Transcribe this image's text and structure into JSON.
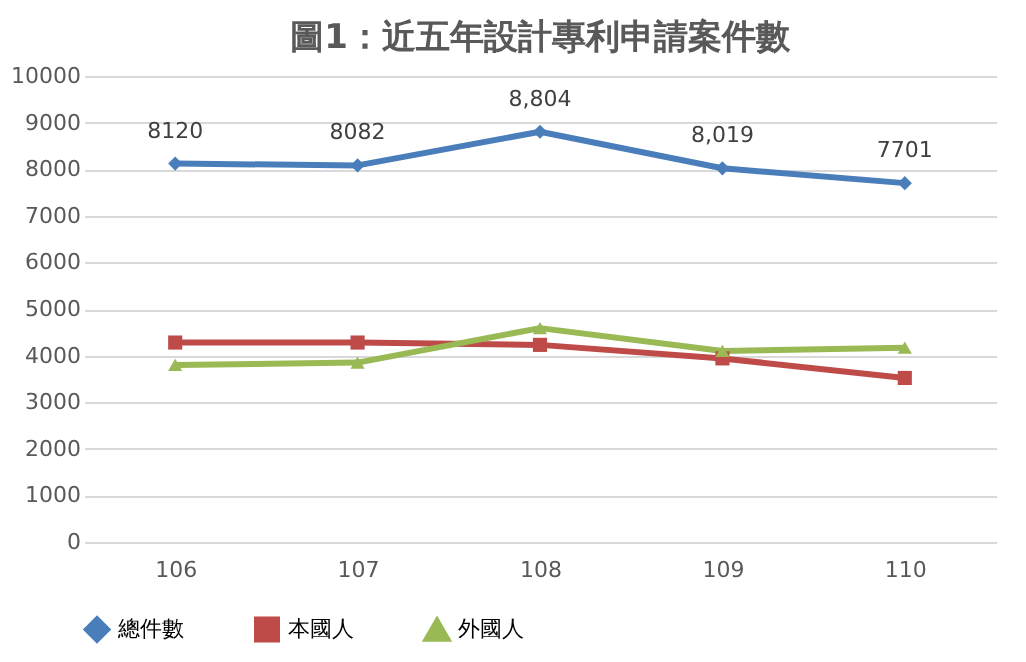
{
  "chart_data": {
    "type": "line",
    "title": "圖1：近五年設計專利申請案件數",
    "categories": [
      "106",
      "107",
      "108",
      "109",
      "110"
    ],
    "series": [
      {
        "name": "總件數",
        "color": "#4a7ebb",
        "marker": "diamond",
        "values": [
          8120,
          8082,
          8804,
          8019,
          7701
        ],
        "value_labels": [
          "8120",
          "8082",
          "8,804",
          "8,019",
          "7701"
        ]
      },
      {
        "name": "本國人",
        "color": "#be4b48",
        "marker": "square",
        "values": [
          4280,
          4280,
          4230,
          3940,
          3520
        ]
      },
      {
        "name": "外國人",
        "color": "#98b954",
        "marker": "triangle",
        "values": [
          3800,
          3850,
          4590,
          4100,
          4170
        ]
      }
    ],
    "ylim": [
      0,
      10000
    ],
    "yticks": [
      0,
      1000,
      2000,
      3000,
      4000,
      5000,
      6000,
      7000,
      8000,
      9000,
      10000
    ],
    "grid": "y",
    "legend": "bottom",
    "line_style": "solid"
  }
}
